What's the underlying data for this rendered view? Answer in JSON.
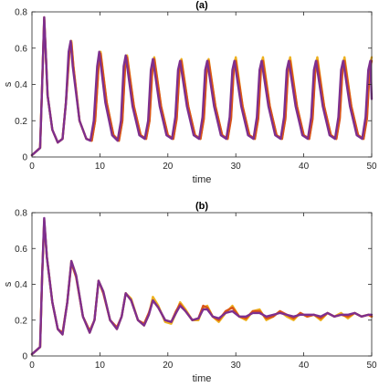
{
  "chart_data": [
    {
      "type": "line",
      "title": "(a)",
      "xlabel": "time",
      "ylabel": "s",
      "xlim": [
        0,
        50
      ],
      "ylim": [
        0,
        0.8
      ],
      "xticks": [
        "0",
        "10",
        "20",
        "30",
        "40",
        "50"
      ],
      "yticks": [
        "0",
        "0.2",
        "0.4",
        "0.6",
        "0.8"
      ],
      "grid": false,
      "legend": "none",
      "series": [
        {
          "color": "#edb120",
          "x": [
            0,
            1.2,
            1.5,
            1.8,
            2.0,
            2.3,
            3.0,
            3.8,
            4.5,
            5.0,
            5.5,
            5.8,
            6.1,
            7.0,
            8.0,
            8.8,
            9.3,
            9.8,
            10.1,
            11.0,
            12.0,
            12.8,
            13.3,
            13.7,
            14.0,
            15.0,
            16.0,
            16.8,
            17.3,
            17.7,
            18.0,
            19.0,
            20.0,
            20.8,
            21.3,
            21.7,
            22.0,
            23.0,
            24.0,
            24.8,
            25.3,
            25.7,
            26.0,
            27.0,
            28.0,
            28.8,
            29.3,
            29.7,
            30.0,
            31.0,
            32.0,
            32.8,
            33.3,
            33.7,
            34.0,
            35.0,
            36.0,
            36.8,
            37.3,
            37.7,
            38.0,
            39.0,
            40.0,
            40.8,
            41.3,
            41.7,
            42.0,
            43.0,
            44.0,
            44.8,
            45.3,
            45.7,
            46.0,
            47.0,
            48.0,
            48.8,
            49.3,
            49.7,
            50.0
          ],
          "y": [
            0.01,
            0.05,
            0.4,
            0.77,
            0.6,
            0.34,
            0.15,
            0.08,
            0.1,
            0.3,
            0.58,
            0.64,
            0.5,
            0.2,
            0.1,
            0.09,
            0.2,
            0.5,
            0.58,
            0.3,
            0.12,
            0.09,
            0.2,
            0.5,
            0.56,
            0.28,
            0.12,
            0.1,
            0.2,
            0.48,
            0.55,
            0.28,
            0.12,
            0.1,
            0.22,
            0.48,
            0.54,
            0.28,
            0.12,
            0.1,
            0.22,
            0.48,
            0.54,
            0.28,
            0.12,
            0.1,
            0.22,
            0.5,
            0.55,
            0.28,
            0.12,
            0.1,
            0.22,
            0.5,
            0.55,
            0.28,
            0.12,
            0.1,
            0.22,
            0.5,
            0.55,
            0.28,
            0.12,
            0.1,
            0.22,
            0.5,
            0.55,
            0.28,
            0.12,
            0.1,
            0.22,
            0.5,
            0.55,
            0.28,
            0.12,
            0.1,
            0.22,
            0.5,
            0.55
          ]
        },
        {
          "color": "#d95319",
          "x": [
            0,
            1.2,
            1.5,
            1.8,
            2.0,
            2.3,
            3.0,
            3.8,
            4.5,
            5.0,
            5.5,
            5.8,
            6.1,
            7.0,
            8.0,
            8.8,
            9.3,
            9.8,
            10.1,
            11.0,
            12.0,
            12.8,
            13.3,
            13.7,
            14.0,
            15.0,
            16.0,
            16.8,
            17.3,
            17.7,
            18.0,
            19.0,
            20.0,
            20.8,
            21.3,
            21.7,
            22.0,
            23.0,
            24.0,
            24.8,
            25.3,
            25.7,
            26.0,
            27.0,
            28.0,
            28.8,
            29.3,
            29.7,
            30.0,
            31.0,
            32.0,
            32.8,
            33.3,
            33.7,
            34.0,
            35.0,
            36.0,
            36.8,
            37.3,
            37.7,
            38.0,
            39.0,
            40.0,
            40.8,
            41.3,
            41.7,
            42.0,
            43.0,
            44.0,
            44.8,
            45.3,
            45.7,
            46.0,
            47.0,
            48.0,
            48.8,
            49.3,
            49.7,
            50.0
          ],
          "y": [
            0.01,
            0.05,
            0.4,
            0.76,
            0.6,
            0.34,
            0.15,
            0.08,
            0.1,
            0.3,
            0.57,
            0.63,
            0.5,
            0.2,
            0.1,
            0.09,
            0.2,
            0.5,
            0.57,
            0.3,
            0.12,
            0.09,
            0.2,
            0.49,
            0.55,
            0.28,
            0.12,
            0.1,
            0.2,
            0.47,
            0.54,
            0.28,
            0.12,
            0.1,
            0.21,
            0.47,
            0.53,
            0.28,
            0.12,
            0.1,
            0.21,
            0.47,
            0.53,
            0.28,
            0.12,
            0.1,
            0.21,
            0.48,
            0.53,
            0.28,
            0.12,
            0.1,
            0.21,
            0.48,
            0.53,
            0.28,
            0.12,
            0.1,
            0.21,
            0.48,
            0.53,
            0.28,
            0.12,
            0.1,
            0.21,
            0.48,
            0.53,
            0.28,
            0.12,
            0.1,
            0.21,
            0.48,
            0.53,
            0.28,
            0.12,
            0.1,
            0.21,
            0.48,
            0.53
          ]
        },
        {
          "color": "#7e2f8e",
          "x": [
            0,
            1.2,
            1.5,
            1.8,
            2.0,
            2.3,
            3.0,
            3.8,
            4.5,
            5.0,
            5.4,
            5.7,
            6.0,
            7.0,
            8.0,
            8.6,
            9.1,
            9.6,
            9.9,
            10.8,
            11.8,
            12.6,
            13.1,
            13.5,
            13.8,
            14.8,
            15.8,
            16.6,
            17.1,
            17.5,
            17.8,
            18.8,
            19.8,
            20.6,
            21.1,
            21.5,
            21.8,
            22.8,
            23.8,
            24.6,
            25.1,
            25.5,
            25.8,
            26.8,
            27.8,
            28.6,
            29.1,
            29.5,
            29.8,
            30.8,
            31.8,
            32.6,
            33.1,
            33.5,
            33.8,
            34.8,
            35.8,
            36.6,
            37.1,
            37.5,
            37.8,
            38.8,
            39.8,
            40.6,
            41.1,
            41.5,
            41.8,
            42.8,
            43.8,
            44.6,
            45.1,
            45.5,
            45.8,
            46.8,
            47.8,
            48.6,
            49.1,
            49.5,
            49.8,
            50.0
          ],
          "y": [
            0.01,
            0.05,
            0.4,
            0.77,
            0.6,
            0.34,
            0.15,
            0.08,
            0.1,
            0.3,
            0.58,
            0.64,
            0.5,
            0.2,
            0.1,
            0.09,
            0.2,
            0.5,
            0.58,
            0.3,
            0.12,
            0.09,
            0.2,
            0.5,
            0.56,
            0.28,
            0.12,
            0.1,
            0.2,
            0.48,
            0.54,
            0.28,
            0.12,
            0.1,
            0.22,
            0.48,
            0.53,
            0.28,
            0.12,
            0.1,
            0.22,
            0.48,
            0.53,
            0.28,
            0.12,
            0.1,
            0.22,
            0.48,
            0.53,
            0.28,
            0.12,
            0.1,
            0.22,
            0.48,
            0.53,
            0.28,
            0.12,
            0.1,
            0.22,
            0.48,
            0.53,
            0.28,
            0.12,
            0.1,
            0.22,
            0.48,
            0.53,
            0.28,
            0.12,
            0.1,
            0.22,
            0.48,
            0.53,
            0.28,
            0.12,
            0.1,
            0.22,
            0.48,
            0.53,
            0.32
          ]
        }
      ]
    },
    {
      "type": "line",
      "title": "(b)",
      "xlabel": "time",
      "ylabel": "s",
      "xlim": [
        0,
        50
      ],
      "ylim": [
        0,
        0.8
      ],
      "xticks": [
        "0",
        "10",
        "20",
        "30",
        "40",
        "50"
      ],
      "yticks": [
        "0",
        "0.2",
        "0.4",
        "0.6",
        "0.8"
      ],
      "grid": false,
      "legend": "none",
      "series": [
        {
          "color": "#edb120",
          "x": [
            0,
            1.2,
            1.5,
            1.8,
            2.2,
            3.0,
            3.8,
            4.5,
            5.2,
            5.8,
            6.5,
            7.5,
            8.5,
            9.2,
            9.8,
            10.5,
            11.5,
            12.5,
            13.2,
            13.8,
            14.6,
            15.6,
            16.5,
            17.2,
            17.8,
            18.6,
            19.6,
            20.5,
            21.2,
            21.8,
            22.6,
            23.6,
            24.5,
            25.2,
            25.8,
            26.6,
            27.5,
            28.5,
            29.5,
            30.5,
            31.5,
            32.5,
            33.5,
            34.5,
            35.5,
            36.5,
            37.5,
            38.5,
            39.5,
            40.5,
            41.5,
            42.5,
            43.5,
            44.5,
            45.5,
            46.5,
            47.5,
            48.5,
            49.5,
            50.0
          ],
          "y": [
            0.01,
            0.05,
            0.45,
            0.76,
            0.55,
            0.3,
            0.15,
            0.12,
            0.3,
            0.53,
            0.45,
            0.22,
            0.13,
            0.2,
            0.42,
            0.36,
            0.2,
            0.15,
            0.22,
            0.35,
            0.32,
            0.2,
            0.17,
            0.23,
            0.33,
            0.28,
            0.19,
            0.18,
            0.24,
            0.3,
            0.26,
            0.2,
            0.2,
            0.27,
            0.28,
            0.22,
            0.19,
            0.24,
            0.28,
            0.22,
            0.2,
            0.25,
            0.26,
            0.2,
            0.22,
            0.25,
            0.22,
            0.2,
            0.24,
            0.22,
            0.23,
            0.2,
            0.24,
            0.22,
            0.24,
            0.21,
            0.24,
            0.22,
            0.23,
            0.22
          ]
        },
        {
          "color": "#d95319",
          "x": [
            0,
            1.2,
            1.5,
            1.8,
            2.2,
            3.0,
            3.8,
            4.5,
            5.2,
            5.8,
            6.5,
            7.5,
            8.5,
            9.2,
            9.8,
            10.5,
            11.5,
            12.5,
            13.2,
            13.8,
            14.6,
            15.6,
            16.5,
            17.2,
            17.8,
            18.6,
            19.6,
            20.5,
            21.2,
            21.8,
            22.6,
            23.6,
            24.5,
            25.2,
            25.8,
            26.6,
            27.5,
            28.5,
            29.5,
            30.5,
            31.5,
            32.5,
            33.5,
            34.5,
            35.5,
            36.5,
            37.5,
            38.5,
            39.5,
            40.5,
            41.5,
            42.5,
            43.5,
            44.5,
            45.5,
            46.5,
            47.5,
            48.5,
            49.5,
            50.0
          ],
          "y": [
            0.01,
            0.05,
            0.45,
            0.75,
            0.55,
            0.3,
            0.15,
            0.13,
            0.3,
            0.52,
            0.44,
            0.22,
            0.14,
            0.2,
            0.42,
            0.35,
            0.2,
            0.16,
            0.22,
            0.35,
            0.31,
            0.2,
            0.18,
            0.24,
            0.31,
            0.27,
            0.2,
            0.19,
            0.25,
            0.29,
            0.25,
            0.2,
            0.21,
            0.28,
            0.27,
            0.22,
            0.2,
            0.25,
            0.27,
            0.22,
            0.21,
            0.25,
            0.25,
            0.21,
            0.22,
            0.25,
            0.23,
            0.21,
            0.24,
            0.22,
            0.23,
            0.21,
            0.24,
            0.22,
            0.23,
            0.22,
            0.24,
            0.22,
            0.23,
            0.22
          ]
        },
        {
          "color": "#7e2f8e",
          "x": [
            0,
            1.2,
            1.5,
            1.8,
            2.2,
            3.0,
            3.8,
            4.5,
            5.2,
            5.8,
            6.5,
            7.5,
            8.5,
            9.2,
            9.8,
            10.5,
            11.5,
            12.5,
            13.2,
            13.8,
            14.6,
            15.6,
            16.5,
            17.2,
            17.8,
            18.6,
            19.6,
            20.5,
            21.2,
            21.8,
            22.6,
            23.6,
            24.5,
            25.2,
            25.8,
            26.6,
            27.5,
            28.5,
            29.5,
            30.5,
            31.5,
            32.5,
            33.5,
            34.5,
            35.5,
            36.5,
            37.5,
            38.5,
            39.5,
            40.5,
            41.5,
            42.5,
            43.5,
            44.5,
            45.5,
            46.5,
            47.5,
            48.5,
            49.5,
            50.0
          ],
          "y": [
            0.01,
            0.05,
            0.45,
            0.77,
            0.55,
            0.3,
            0.15,
            0.12,
            0.3,
            0.53,
            0.45,
            0.22,
            0.13,
            0.2,
            0.42,
            0.36,
            0.2,
            0.15,
            0.22,
            0.35,
            0.31,
            0.2,
            0.17,
            0.23,
            0.31,
            0.27,
            0.2,
            0.19,
            0.24,
            0.28,
            0.25,
            0.2,
            0.21,
            0.26,
            0.26,
            0.22,
            0.21,
            0.24,
            0.25,
            0.22,
            0.22,
            0.24,
            0.24,
            0.22,
            0.23,
            0.24,
            0.23,
            0.22,
            0.23,
            0.23,
            0.23,
            0.22,
            0.24,
            0.22,
            0.23,
            0.23,
            0.24,
            0.22,
            0.23,
            0.23
          ]
        }
      ]
    }
  ]
}
